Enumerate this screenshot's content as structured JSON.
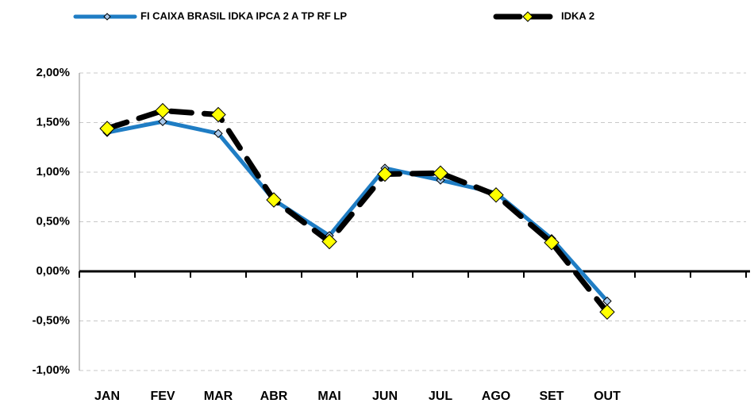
{
  "chart_data": {
    "type": "line",
    "categories": [
      "JAN",
      "FEV",
      "MAR",
      "ABR",
      "MAI",
      "JUN",
      "JUL",
      "AGO",
      "SET",
      "OUT",
      null,
      null
    ],
    "series": [
      {
        "name": "FI CAIXA BRASIL IDKA IPCA 2 A TP RF LP",
        "color": "#1f7dc4",
        "marker_color": "#a9c8ea",
        "values": [
          1.4,
          1.51,
          1.39,
          0.72,
          0.36,
          1.04,
          0.92,
          0.79,
          0.33,
          -0.3,
          null,
          null
        ]
      },
      {
        "name": "IDKA 2",
        "color": "#000000",
        "marker_color": "#ffff00",
        "values": [
          1.44,
          1.62,
          1.58,
          0.72,
          0.3,
          0.98,
          0.99,
          0.77,
          0.29,
          -0.41,
          null,
          null
        ]
      }
    ],
    "ylim": [
      -1,
      2
    ],
    "yticks": [
      {
        "value": -1,
        "label": "-1,00%"
      },
      {
        "value": -0.5,
        "label": "-0,50%"
      },
      {
        "value": 0,
        "label": "0,00%"
      },
      {
        "value": 0.5,
        "label": "0,50%"
      },
      {
        "value": 1,
        "label": "1,00%"
      },
      {
        "value": 1.5,
        "label": "1,50%"
      },
      {
        "value": 2,
        "label": "2,00%"
      }
    ],
    "grid": true
  }
}
